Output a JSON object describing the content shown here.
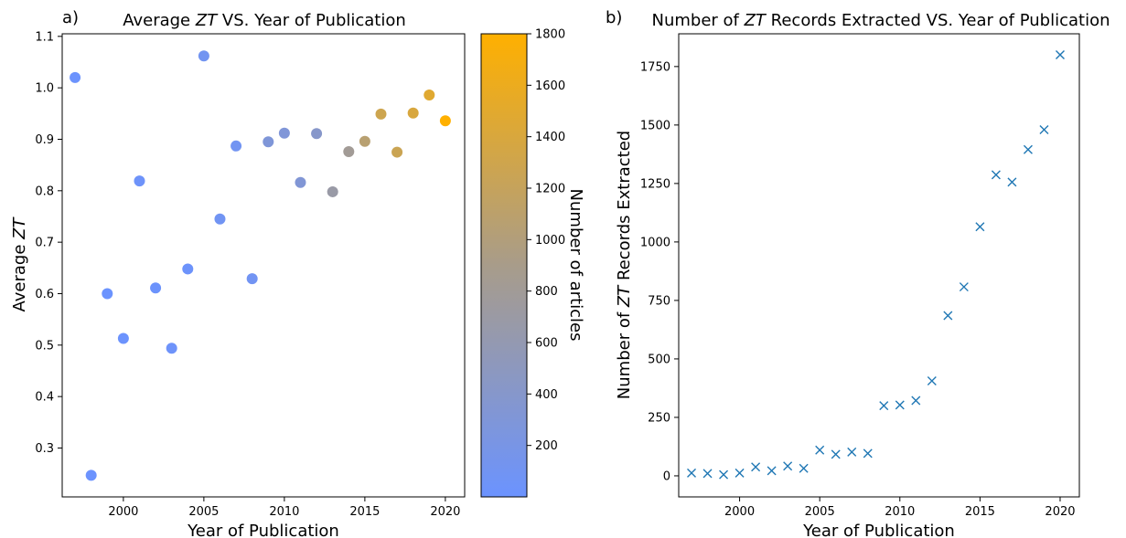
{
  "chart_data": [
    {
      "type": "scatter",
      "panel_letter": "a)",
      "title": "Average ZT VS. Year of Publication",
      "xlabel": "Year of Publication",
      "ylabel": "Average ZT",
      "xlim": [
        1996.2,
        2021.2
      ],
      "ylim": [
        0.205,
        1.105
      ],
      "x_ticks": [
        2000,
        2005,
        2010,
        2015,
        2020
      ],
      "y_ticks": [
        0.3,
        0.4,
        0.5,
        0.6,
        0.7,
        0.8,
        0.9,
        1.0,
        1.1
      ],
      "colorbar": {
        "label": "Number of articles",
        "range": [
          0,
          1800
        ],
        "ticks": [
          200,
          400,
          600,
          800,
          1000,
          1200,
          1400,
          1600,
          1800
        ],
        "color_low": "#6b93ff",
        "color_mid": "#a89c8a",
        "color_high": "#ffb000"
      },
      "points": [
        {
          "x": 1997,
          "y": 1.02,
          "c": 12
        },
        {
          "x": 1998,
          "y": 0.247,
          "c": 10
        },
        {
          "x": 1999,
          "y": 0.6,
          "c": 5
        },
        {
          "x": 2000,
          "y": 0.513,
          "c": 12
        },
        {
          "x": 2001,
          "y": 0.819,
          "c": 38
        },
        {
          "x": 2002,
          "y": 0.611,
          "c": 22
        },
        {
          "x": 2003,
          "y": 0.494,
          "c": 42
        },
        {
          "x": 2004,
          "y": 0.648,
          "c": 32
        },
        {
          "x": 2005,
          "y": 1.062,
          "c": 110
        },
        {
          "x": 2006,
          "y": 0.745,
          "c": 92
        },
        {
          "x": 2007,
          "y": 0.887,
          "c": 102
        },
        {
          "x": 2008,
          "y": 0.629,
          "c": 96
        },
        {
          "x": 2009,
          "y": 0.895,
          "c": 300
        },
        {
          "x": 2010,
          "y": 0.912,
          "c": 303
        },
        {
          "x": 2011,
          "y": 0.816,
          "c": 322
        },
        {
          "x": 2012,
          "y": 0.911,
          "c": 406
        },
        {
          "x": 2013,
          "y": 0.798,
          "c": 685
        },
        {
          "x": 2014,
          "y": 0.876,
          "c": 808
        },
        {
          "x": 2015,
          "y": 0.896,
          "c": 1065
        },
        {
          "x": 2016,
          "y": 0.949,
          "c": 1287
        },
        {
          "x": 2017,
          "y": 0.875,
          "c": 1256
        },
        {
          "x": 2018,
          "y": 0.951,
          "c": 1395
        },
        {
          "x": 2019,
          "y": 0.986,
          "c": 1480
        },
        {
          "x": 2020,
          "y": 0.936,
          "c": 1800
        }
      ]
    },
    {
      "type": "scatter",
      "panel_letter": "b)",
      "title": "Number of ZT Records Extracted VS. Year of Publication",
      "xlabel": "Year of Publication",
      "ylabel": "Number of ZT Records Extracted",
      "marker": "x",
      "color": "#1f77b4",
      "xlim": [
        1996.2,
        2021.2
      ],
      "ylim": [
        -90,
        1890
      ],
      "x_ticks": [
        2000,
        2005,
        2010,
        2015,
        2020
      ],
      "y_ticks": [
        0,
        250,
        500,
        750,
        1000,
        1250,
        1500,
        1750
      ],
      "x": [
        1997,
        1998,
        1999,
        2000,
        2001,
        2002,
        2003,
        2004,
        2005,
        2006,
        2007,
        2008,
        2009,
        2010,
        2011,
        2012,
        2013,
        2014,
        2015,
        2016,
        2017,
        2018,
        2019,
        2020
      ],
      "y": [
        12,
        10,
        5,
        12,
        38,
        22,
        42,
        32,
        110,
        92,
        102,
        96,
        300,
        303,
        322,
        406,
        685,
        808,
        1065,
        1287,
        1256,
        1395,
        1480,
        1800
      ]
    }
  ]
}
